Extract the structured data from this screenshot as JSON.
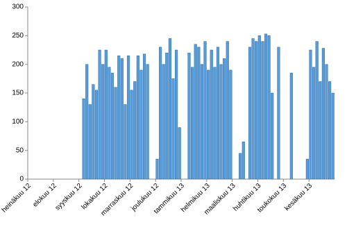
{
  "chart_data": {
    "type": "bar",
    "categories": [
      "heinäkuu 12",
      null,
      null,
      null,
      null,
      null,
      null,
      null,
      "elokuu 12",
      null,
      null,
      null,
      null,
      null,
      null,
      null,
      "syyskuu 12",
      null,
      null,
      null,
      null,
      null,
      null,
      null,
      "lokakuu 12",
      null,
      null,
      null,
      null,
      null,
      null,
      null,
      "marraskuu 12",
      null,
      null,
      null,
      null,
      null,
      null,
      null,
      "joulukuu 12",
      null,
      null,
      null,
      null,
      null,
      null,
      null,
      "tammikuu 13",
      null,
      null,
      null,
      null,
      null,
      null,
      null,
      "helmikuu 13",
      null,
      null,
      null,
      null,
      null,
      null,
      null,
      "maaliskuu 13",
      null,
      null,
      null,
      null,
      null,
      null,
      null,
      "huhtikuu 13",
      null,
      null,
      null,
      null,
      null,
      null,
      null,
      "toukokuu 13",
      null,
      null,
      null,
      null,
      null,
      null,
      null,
      "kesäkuu 13",
      null,
      null,
      null,
      null,
      null,
      null,
      null
    ],
    "values": [
      0,
      0,
      0,
      0,
      0,
      0,
      0,
      0,
      0,
      0,
      0,
      0,
      0,
      0,
      0,
      0,
      0,
      140,
      200,
      130,
      165,
      155,
      225,
      200,
      225,
      195,
      185,
      160,
      215,
      210,
      130,
      215,
      155,
      170,
      215,
      190,
      218,
      200,
      0,
      0,
      35,
      230,
      200,
      220,
      245,
      175,
      225,
      90,
      0,
      0,
      220,
      195,
      235,
      230,
      200,
      240,
      190,
      225,
      195,
      230,
      200,
      210,
      240,
      190,
      0,
      0,
      45,
      65,
      0,
      230,
      245,
      240,
      250,
      240,
      253,
      250,
      150,
      0,
      230,
      0,
      0,
      0,
      185,
      0,
      0,
      0,
      0,
      35,
      225,
      195,
      240,
      170,
      228,
      200,
      170,
      150
    ],
    "color": "#5b9bd5",
    "ylim": [
      0,
      300
    ],
    "yticks": [
      0,
      50,
      100,
      150,
      200,
      250,
      300
    ],
    "grid": false
  }
}
